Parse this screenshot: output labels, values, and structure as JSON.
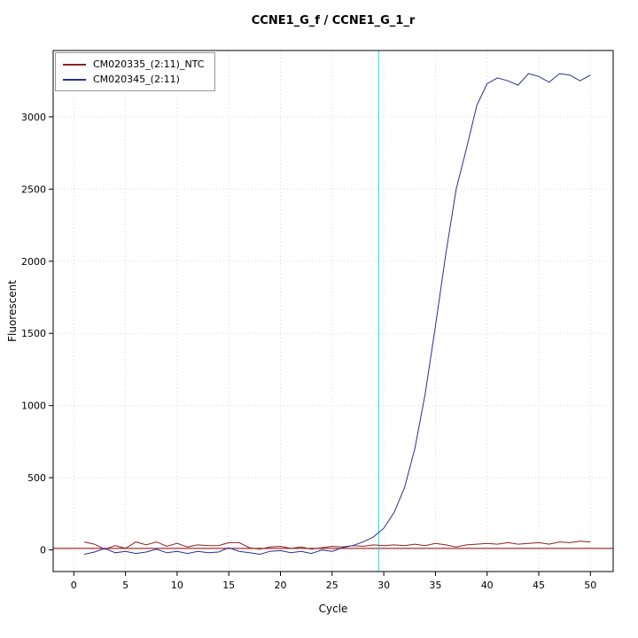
{
  "chart_data": {
    "type": "line",
    "title": "CCNE1_G_f / CCNE1_G_1_r",
    "xlabel": "Cycle",
    "ylabel": "Fluorescent",
    "xlim": [
      -2.0,
      52.2
    ],
    "ylim": [
      -150,
      3460
    ],
    "x_ticks": [
      0,
      5,
      10,
      15,
      20,
      25,
      30,
      35,
      40,
      45,
      50
    ],
    "y_ticks": [
      0,
      500,
      1000,
      1500,
      2000,
      2500,
      3000
    ],
    "grid": true,
    "legend_position": "top-left",
    "colors": {
      "grid": "#d9d9d9",
      "background": "#ffffff",
      "axis": "#000000"
    },
    "threshold_line": {
      "y": 10,
      "color": "#8b0000"
    },
    "ct_line": {
      "x": 29.5,
      "color": "#00e5e5"
    },
    "x": [
      1,
      2,
      3,
      4,
      5,
      6,
      7,
      8,
      9,
      10,
      11,
      12,
      13,
      14,
      15,
      16,
      17,
      18,
      19,
      20,
      21,
      22,
      23,
      24,
      25,
      26,
      27,
      28,
      29,
      30,
      31,
      32,
      33,
      34,
      35,
      36,
      37,
      38,
      39,
      40,
      41,
      42,
      43,
      44,
      45,
      46,
      47,
      48,
      49,
      50
    ],
    "series": [
      {
        "name": "CM020335_(2:11)_NTC",
        "color": "#8b2323",
        "values": [
          55,
          40,
          5,
          30,
          10,
          55,
          35,
          55,
          25,
          45,
          20,
          35,
          30,
          30,
          50,
          50,
          15,
          5,
          20,
          25,
          10,
          20,
          5,
          15,
          25,
          20,
          30,
          25,
          35,
          30,
          35,
          30,
          40,
          30,
          45,
          35,
          20,
          35,
          40,
          45,
          40,
          50,
          40,
          45,
          50,
          40,
          55,
          50,
          60,
          55
        ]
      },
      {
        "name": "CM020345_(2:11)",
        "color": "#2a2f8f",
        "values": [
          -30,
          -15,
          10,
          -20,
          -10,
          -25,
          -15,
          5,
          -20,
          -10,
          -25,
          -10,
          -20,
          -15,
          15,
          -10,
          -20,
          -30,
          -10,
          -5,
          -20,
          -10,
          -25,
          0,
          -10,
          15,
          30,
          55,
          90,
          150,
          260,
          430,
          700,
          1080,
          1550,
          2050,
          2500,
          2780,
          3080,
          3230,
          3270,
          3250,
          3220,
          3300,
          3280,
          3240,
          3300,
          3290,
          3250,
          3290
        ]
      }
    ]
  }
}
